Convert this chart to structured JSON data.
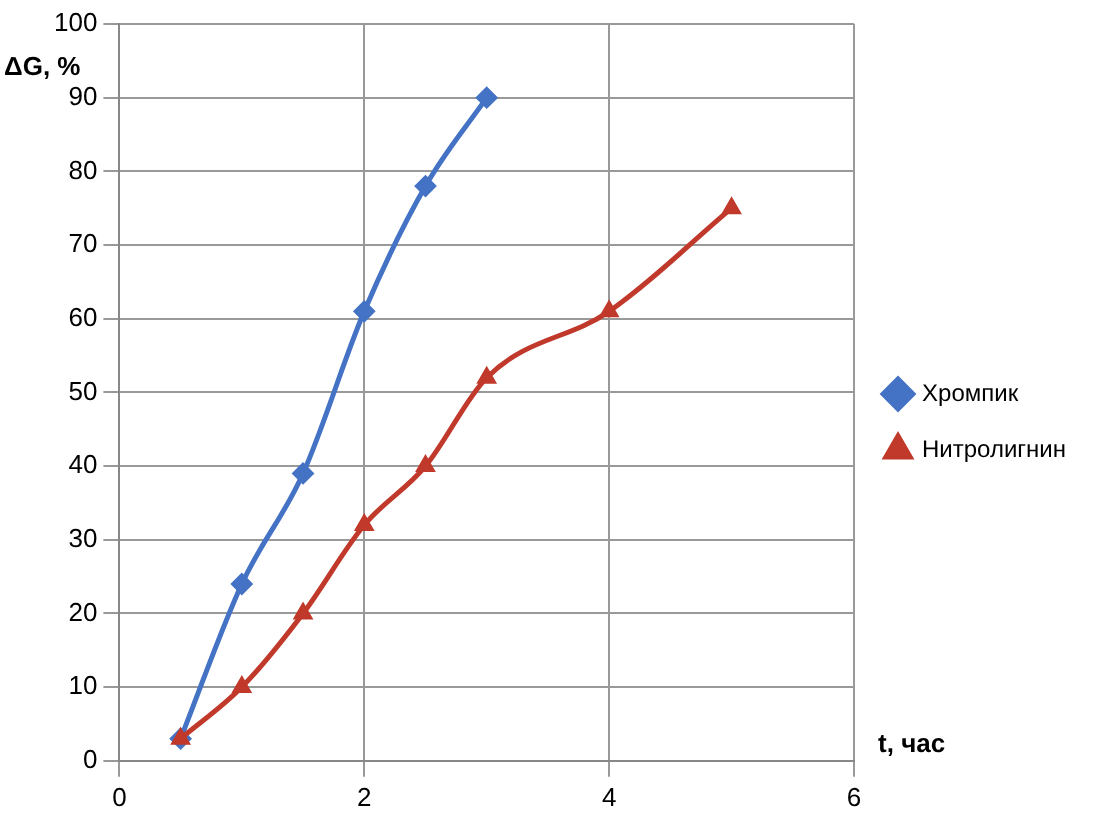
{
  "chart_data": {
    "type": "line",
    "xlabel": "t, час",
    "ylabel": "ΔG, %",
    "xlim": [
      0,
      6
    ],
    "xticks": [
      0,
      2,
      4,
      6
    ],
    "ylim": [
      0,
      100
    ],
    "yticks": [
      0,
      10,
      20,
      30,
      40,
      50,
      60,
      70,
      80,
      90,
      100
    ],
    "grid": true,
    "legend": "right",
    "series": [
      {
        "name": "Хромпик",
        "color": "#4472c4",
        "marker": "diamond",
        "x": [
          0.5,
          1,
          1.5,
          2,
          2.5,
          3
        ],
        "values": [
          3,
          24,
          39,
          61,
          78,
          90
        ]
      },
      {
        "name": "Нитролигнин",
        "color": "#c0392b",
        "marker": "triangle",
        "x": [
          0.5,
          1,
          1.5,
          2,
          2.5,
          3,
          4,
          5
        ],
        "values": [
          3,
          10,
          20,
          32,
          40,
          52,
          61,
          75
        ]
      }
    ]
  }
}
